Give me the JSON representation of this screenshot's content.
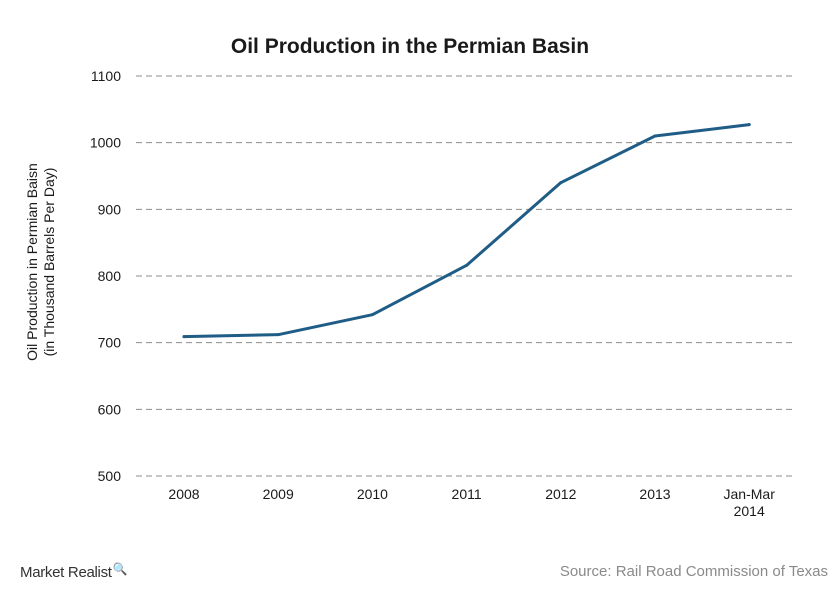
{
  "chart_data": {
    "type": "line",
    "title": "Oil Production in the Permian Basin",
    "xlabel": "",
    "ylabel": [
      "Oil Production in Permian Baisn",
      "(in Thousand Barrels Per Day)"
    ],
    "categories": [
      [
        "2008"
      ],
      [
        "2009"
      ],
      [
        "2010"
      ],
      [
        "2011"
      ],
      [
        "2012"
      ],
      [
        "2013"
      ],
      [
        "Jan-Mar",
        "2014"
      ]
    ],
    "series": [
      {
        "values": [
          709,
          712,
          742,
          816,
          940,
          1010,
          1027
        ],
        "color": "#1f5d86"
      }
    ],
    "yticks": [
      500,
      600,
      700,
      800,
      900,
      1000,
      1100
    ],
    "ylim": [
      500,
      1100
    ],
    "grid": true,
    "legend": "none"
  },
  "footer": {
    "brand": "Market Realist",
    "brand_icon": "magnifier-icon",
    "source": "Source: Rail Road Commission of Texas"
  }
}
